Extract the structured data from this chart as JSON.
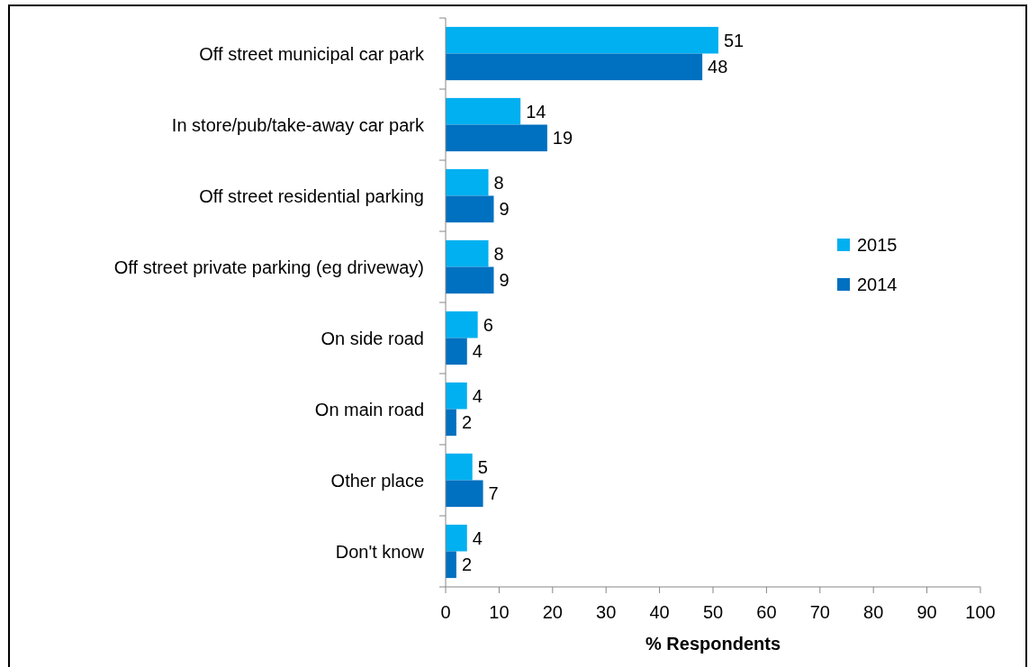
{
  "chart_data": {
    "type": "bar",
    "orientation": "horizontal",
    "xlabel": "% Respondents",
    "categories": [
      "Off street municipal car park",
      "In store/pub/take-away car park",
      "Off street residential parking",
      "Off street private parking (eg driveway)",
      "On side road",
      "On main road",
      "Other place",
      "Don't know"
    ],
    "series": [
      {
        "name": "2015",
        "color": "#00b0f0",
        "values": [
          51,
          14,
          8,
          8,
          6,
          4,
          5,
          4
        ]
      },
      {
        "name": "2014",
        "color": "#0070c0",
        "values": [
          48,
          19,
          9,
          9,
          4,
          2,
          7,
          2
        ]
      }
    ],
    "xlim": [
      0,
      100
    ],
    "xticks": [
      0,
      10,
      20,
      30,
      40,
      50,
      60,
      70,
      80,
      90,
      100
    ],
    "data_labels": true,
    "legend": "right",
    "grid": false
  }
}
